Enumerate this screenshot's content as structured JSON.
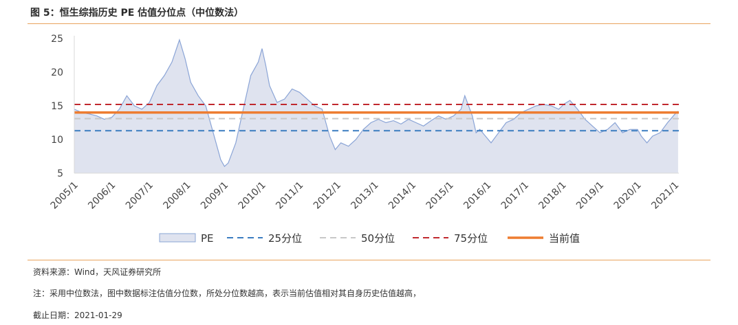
{
  "figure": {
    "title": "图 5：恒生综指历史 PE 估值分位点（中位数法）",
    "source": "资料来源：Wind，天风证券研究所",
    "note": "注：采用中位数法，图中数据标注估值分位数，所处分位数越高，表示当前估值相对其自身历史估值越高，",
    "cutoff": "截止日期：2021-01-29"
  },
  "colors": {
    "pe_fill": "#dfe3ef",
    "pe_line": "#8aa4d6",
    "p25": "#3a7cc0",
    "p50": "#c8c8c8",
    "p75": "#c0282d",
    "current": "#ed7d31",
    "accent_rule": "#e8a35c"
  },
  "chart_data": {
    "type": "area",
    "title": "",
    "xlabel": "",
    "ylabel": "",
    "ylim": [
      5,
      25
    ],
    "yticks": [
      "5",
      "10",
      "15",
      "20",
      "25"
    ],
    "xticks": [
      "2005/1",
      "2006/1",
      "2007/1",
      "2008/1",
      "2009/1",
      "2010/1",
      "2011/1",
      "2012/1",
      "2013/1",
      "2014/1",
      "2015/1",
      "2016/1",
      "2017/1",
      "2018/1",
      "2019/1",
      "2020/1",
      "2021/1"
    ],
    "xrange": [
      2005.0,
      2021.1
    ],
    "grid": false,
    "legend_position": "bottom",
    "series": [
      {
        "name": "PE",
        "kind": "area",
        "x": [
          2005.0,
          2005.2,
          2005.4,
          2005.6,
          2005.8,
          2006.0,
          2006.2,
          2006.4,
          2006.6,
          2006.8,
          2007.0,
          2007.2,
          2007.4,
          2007.6,
          2007.8,
          2007.95,
          2008.1,
          2008.3,
          2008.5,
          2008.7,
          2008.9,
          2009.0,
          2009.1,
          2009.3,
          2009.5,
          2009.7,
          2009.9,
          2010.0,
          2010.1,
          2010.2,
          2010.4,
          2010.6,
          2010.8,
          2011.0,
          2011.2,
          2011.4,
          2011.6,
          2011.8,
          2011.95,
          2012.1,
          2012.3,
          2012.5,
          2012.7,
          2012.9,
          2013.1,
          2013.3,
          2013.5,
          2013.7,
          2013.9,
          2014.1,
          2014.3,
          2014.5,
          2014.7,
          2014.9,
          2015.1,
          2015.3,
          2015.4,
          2015.5,
          2015.6,
          2015.7,
          2015.8,
          2015.95,
          2016.1,
          2016.3,
          2016.5,
          2016.7,
          2016.9,
          2017.1,
          2017.3,
          2017.5,
          2017.7,
          2017.9,
          2018.05,
          2018.2,
          2018.4,
          2018.6,
          2018.8,
          2019.0,
          2019.2,
          2019.4,
          2019.6,
          2019.8,
          2020.0,
          2020.1,
          2020.25,
          2020.4,
          2020.6,
          2020.8,
          2021.0,
          2021.08
        ],
        "values": [
          14.5,
          14.0,
          13.8,
          13.5,
          13.0,
          13.3,
          14.5,
          16.5,
          15.0,
          14.5,
          15.5,
          18.0,
          19.5,
          21.5,
          24.8,
          22.0,
          18.5,
          16.5,
          15.0,
          11.0,
          7.0,
          6.0,
          6.5,
          9.5,
          14.5,
          19.5,
          21.5,
          23.5,
          21.0,
          18.0,
          15.5,
          16.0,
          17.5,
          17.0,
          16.0,
          15.0,
          14.5,
          10.5,
          8.5,
          9.5,
          9.0,
          10.0,
          11.5,
          12.5,
          13.0,
          12.5,
          12.8,
          12.3,
          13.0,
          12.5,
          12.0,
          12.8,
          13.5,
          13.0,
          13.5,
          14.5,
          16.5,
          15.0,
          13.5,
          11.0,
          11.5,
          10.5,
          9.5,
          11.0,
          12.5,
          13.0,
          14.0,
          14.5,
          15.0,
          15.2,
          15.0,
          14.5,
          15.3,
          15.8,
          14.5,
          13.0,
          12.0,
          11.0,
          11.5,
          12.5,
          11.0,
          11.5,
          11.5,
          10.5,
          9.5,
          10.5,
          11.0,
          12.5,
          13.8,
          14.2
        ]
      },
      {
        "name": "25分位",
        "kind": "hline",
        "value": 11.3
      },
      {
        "name": "50分位",
        "kind": "hline",
        "value": 13.1
      },
      {
        "name": "75分位",
        "kind": "hline",
        "value": 15.2
      },
      {
        "name": "当前值",
        "kind": "hline",
        "value": 14.0
      }
    ]
  }
}
